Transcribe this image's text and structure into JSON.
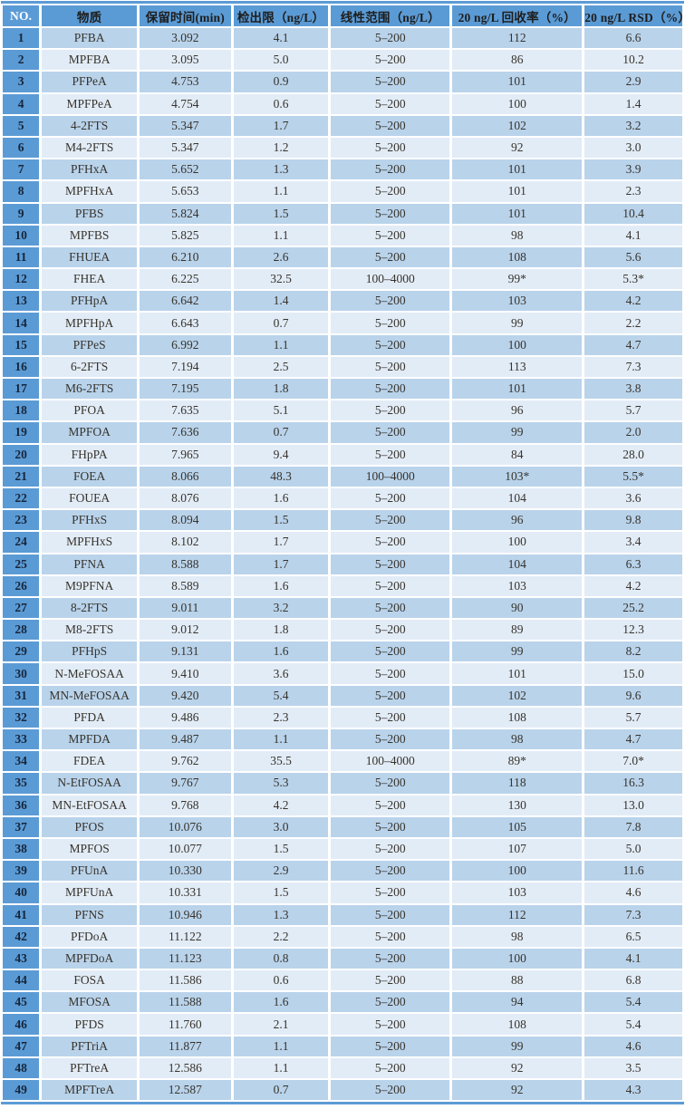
{
  "colors": {
    "accent_blue": "#5b9bd5",
    "row_odd": "#b9d3eb",
    "row_even": "#e2ecf7",
    "header_text": "#1d1d1d",
    "no_header_text": "#ffffff",
    "body_text": "#37332b"
  },
  "table": {
    "columns": [
      {
        "key": "no",
        "label": "NO."
      },
      {
        "key": "substance",
        "label": "物质"
      },
      {
        "key": "retention-time",
        "label": "保留时间(min)"
      },
      {
        "key": "detection-limit",
        "label": "检出限（ng/L）"
      },
      {
        "key": "linear-range",
        "label": "线性范围（ng/L）"
      },
      {
        "key": "recovery",
        "label": "20 ng/L 回收率（%）"
      },
      {
        "key": "rsd",
        "label": "20 ng/L RSD（%）"
      }
    ],
    "rows": [
      [
        "1",
        "PFBA",
        "3.092",
        "4.1",
        "5–200",
        "112",
        "6.6"
      ],
      [
        "2",
        "MPFBA",
        "3.095",
        "5.0",
        "5–200",
        "86",
        "10.2"
      ],
      [
        "3",
        "PFPeA",
        "4.753",
        "0.9",
        "5–200",
        "101",
        "2.9"
      ],
      [
        "4",
        "MPFPeA",
        "4.754",
        "0.6",
        "5–200",
        "100",
        "1.4"
      ],
      [
        "5",
        "4-2FTS",
        "5.347",
        "1.7",
        "5–200",
        "102",
        "3.2"
      ],
      [
        "6",
        "M4-2FTS",
        "5.347",
        "1.2",
        "5–200",
        "92",
        "3.0"
      ],
      [
        "7",
        "PFHxA",
        "5.652",
        "1.3",
        "5–200",
        "101",
        "3.9"
      ],
      [
        "8",
        "MPFHxA",
        "5.653",
        "1.1",
        "5–200",
        "101",
        "2.3"
      ],
      [
        "9",
        "PFBS",
        "5.824",
        "1.5",
        "5–200",
        "101",
        "10.4"
      ],
      [
        "10",
        "MPFBS",
        "5.825",
        "1.1",
        "5–200",
        "98",
        "4.1"
      ],
      [
        "11",
        "FHUEA",
        "6.210",
        "2.6",
        "5–200",
        "108",
        "5.6"
      ],
      [
        "12",
        "FHEA",
        "6.225",
        "32.5",
        "100–4000",
        "99*",
        "5.3*"
      ],
      [
        "13",
        "PFHpA",
        "6.642",
        "1.4",
        "5–200",
        "103",
        "4.2"
      ],
      [
        "14",
        "MPFHpA",
        "6.643",
        "0.7",
        "5–200",
        "99",
        "2.2"
      ],
      [
        "15",
        "PFPeS",
        "6.992",
        "1.1",
        "5–200",
        "100",
        "4.7"
      ],
      [
        "16",
        "6-2FTS",
        "7.194",
        "2.5",
        "5–200",
        "113",
        "7.3"
      ],
      [
        "17",
        "M6-2FTS",
        "7.195",
        "1.8",
        "5–200",
        "101",
        "3.8"
      ],
      [
        "18",
        "PFOA",
        "7.635",
        "5.1",
        "5–200",
        "96",
        "5.7"
      ],
      [
        "19",
        "MPFOA",
        "7.636",
        "0.7",
        "5–200",
        "99",
        "2.0"
      ],
      [
        "20",
        "FHpPA",
        "7.965",
        "9.4",
        "5–200",
        "84",
        "28.0"
      ],
      [
        "21",
        "FOEA",
        "8.066",
        "48.3",
        "100–4000",
        "103*",
        "5.5*"
      ],
      [
        "22",
        "FOUEA",
        "8.076",
        "1.6",
        "5–200",
        "104",
        "3.6"
      ],
      [
        "23",
        "PFHxS",
        "8.094",
        "1.5",
        "5–200",
        "96",
        "9.8"
      ],
      [
        "24",
        "MPFHxS",
        "8.102",
        "1.7",
        "5–200",
        "100",
        "3.4"
      ],
      [
        "25",
        "PFNA",
        "8.588",
        "1.7",
        "5–200",
        "104",
        "6.3"
      ],
      [
        "26",
        "M9PFNA",
        "8.589",
        "1.6",
        "5–200",
        "103",
        "4.2"
      ],
      [
        "27",
        "8-2FTS",
        "9.011",
        "3.2",
        "5–200",
        "90",
        "25.2"
      ],
      [
        "28",
        "M8-2FTS",
        "9.012",
        "1.8",
        "5–200",
        "89",
        "12.3"
      ],
      [
        "29",
        "PFHpS",
        "9.131",
        "1.6",
        "5–200",
        "99",
        "8.2"
      ],
      [
        "30",
        "N-MeFOSAA",
        "9.410",
        "3.6",
        "5–200",
        "101",
        "15.0"
      ],
      [
        "31",
        "MN-MeFOSAA",
        "9.420",
        "5.4",
        "5–200",
        "102",
        "9.6"
      ],
      [
        "32",
        "PFDA",
        "9.486",
        "2.3",
        "5–200",
        "108",
        "5.7"
      ],
      [
        "33",
        "MPFDA",
        "9.487",
        "1.1",
        "5–200",
        "98",
        "4.7"
      ],
      [
        "34",
        "FDEA",
        "9.762",
        "35.5",
        "100–4000",
        "89*",
        "7.0*"
      ],
      [
        "35",
        "N-EtFOSAA",
        "9.767",
        "5.3",
        "5–200",
        "118",
        "16.3"
      ],
      [
        "36",
        "MN-EtFOSAA",
        "9.768",
        "4.2",
        "5–200",
        "130",
        "13.0"
      ],
      [
        "37",
        "PFOS",
        "10.076",
        "3.0",
        "5–200",
        "105",
        "7.8"
      ],
      [
        "38",
        "MPFOS",
        "10.077",
        "1.5",
        "5–200",
        "107",
        "5.0"
      ],
      [
        "39",
        "PFUnA",
        "10.330",
        "2.9",
        "5–200",
        "100",
        "11.6"
      ],
      [
        "40",
        "MPFUnA",
        "10.331",
        "1.5",
        "5–200",
        "103",
        "4.6"
      ],
      [
        "41",
        "PFNS",
        "10.946",
        "1.3",
        "5–200",
        "112",
        "7.3"
      ],
      [
        "42",
        "PFDoA",
        "11.122",
        "2.2",
        "5–200",
        "98",
        "6.5"
      ],
      [
        "43",
        "MPFDoA",
        "11.123",
        "0.8",
        "5–200",
        "100",
        "4.1"
      ],
      [
        "44",
        "FOSA",
        "11.586",
        "0.6",
        "5–200",
        "88",
        "6.8"
      ],
      [
        "45",
        "MFOSA",
        "11.588",
        "1.6",
        "5–200",
        "94",
        "5.4"
      ],
      [
        "46",
        "PFDS",
        "11.760",
        "2.1",
        "5–200",
        "108",
        "5.4"
      ],
      [
        "47",
        "PFTriA",
        "11.877",
        "1.1",
        "5–200",
        "99",
        "4.6"
      ],
      [
        "48",
        "PFTreA",
        "12.586",
        "1.1",
        "5–200",
        "92",
        "3.5"
      ],
      [
        "49",
        "MPFTreA",
        "12.587",
        "0.7",
        "5–200",
        "92",
        "4.3"
      ]
    ]
  }
}
